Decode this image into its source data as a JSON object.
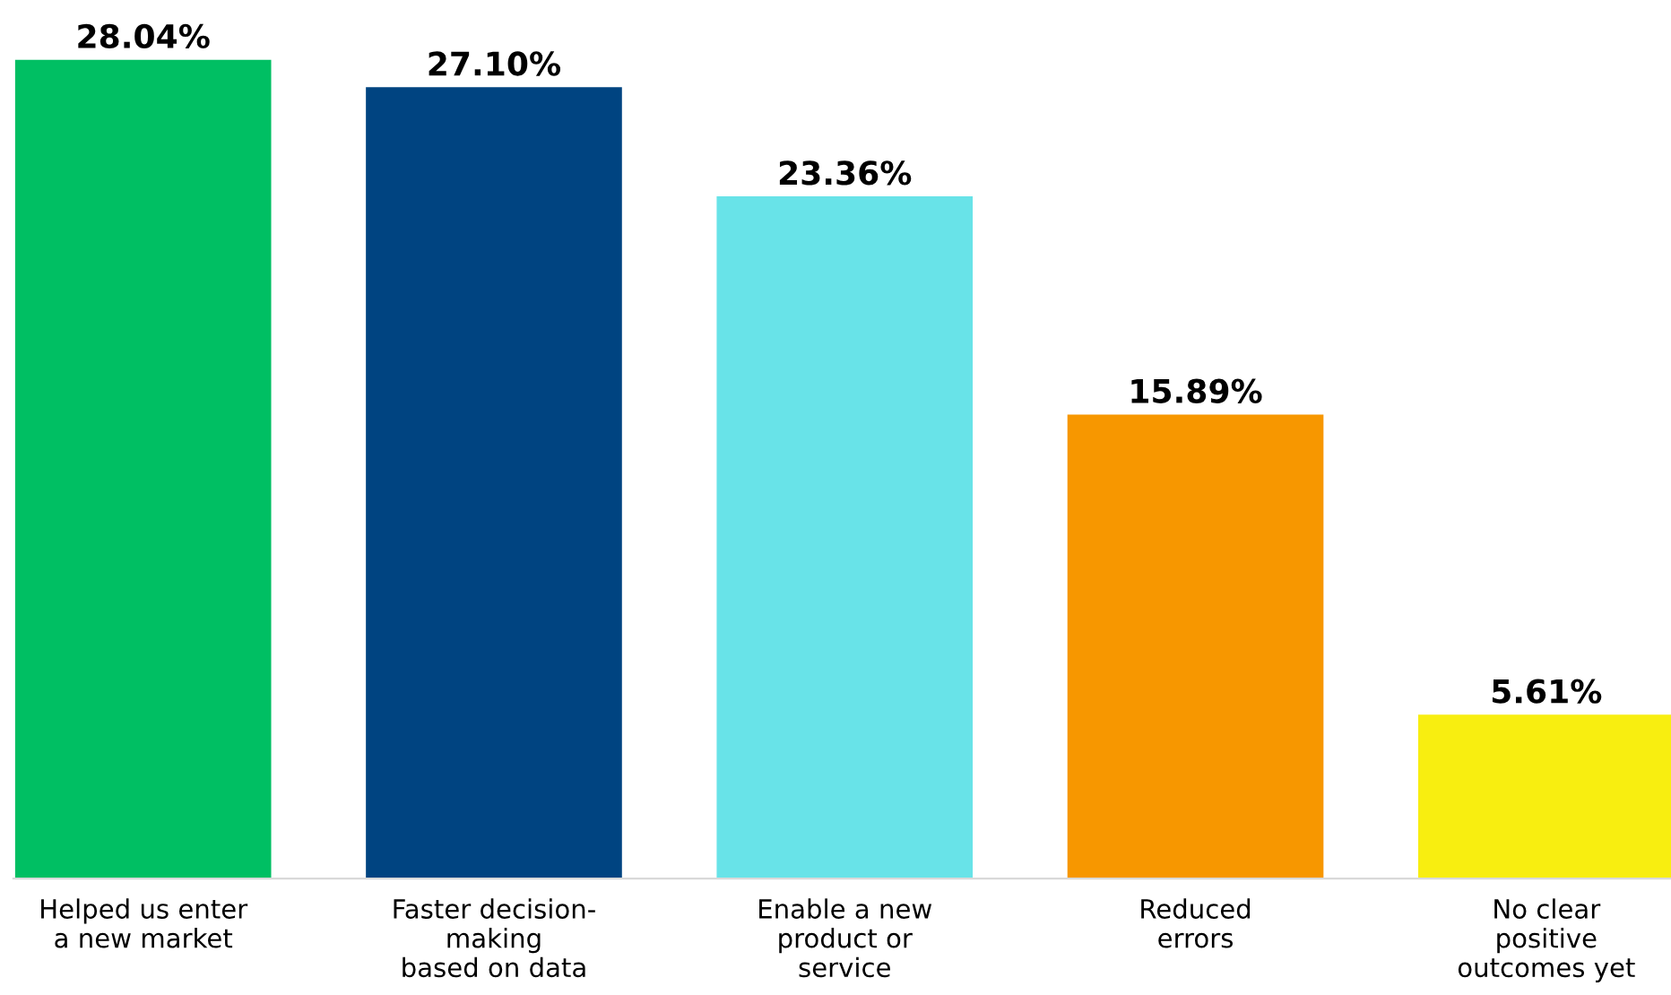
{
  "chart_data": {
    "type": "bar",
    "categories": [
      "Helped us enter\na new market",
      "Faster decision-\nmaking\nbased on data",
      "Enable a new\nproduct or\nservice",
      "Reduced\nerrors",
      "No clear\npositive\noutcomes yet"
    ],
    "values": [
      28.04,
      27.1,
      23.36,
      15.89,
      5.61
    ],
    "colors": [
      "#00bf63",
      "#004481",
      "#68e3e8",
      "#f79700",
      "#f8ee10"
    ],
    "value_labels": [
      "28.04%",
      "27.10%",
      "23.36%",
      "15.89%",
      "5.61%"
    ],
    "grid": false,
    "legend": false
  }
}
